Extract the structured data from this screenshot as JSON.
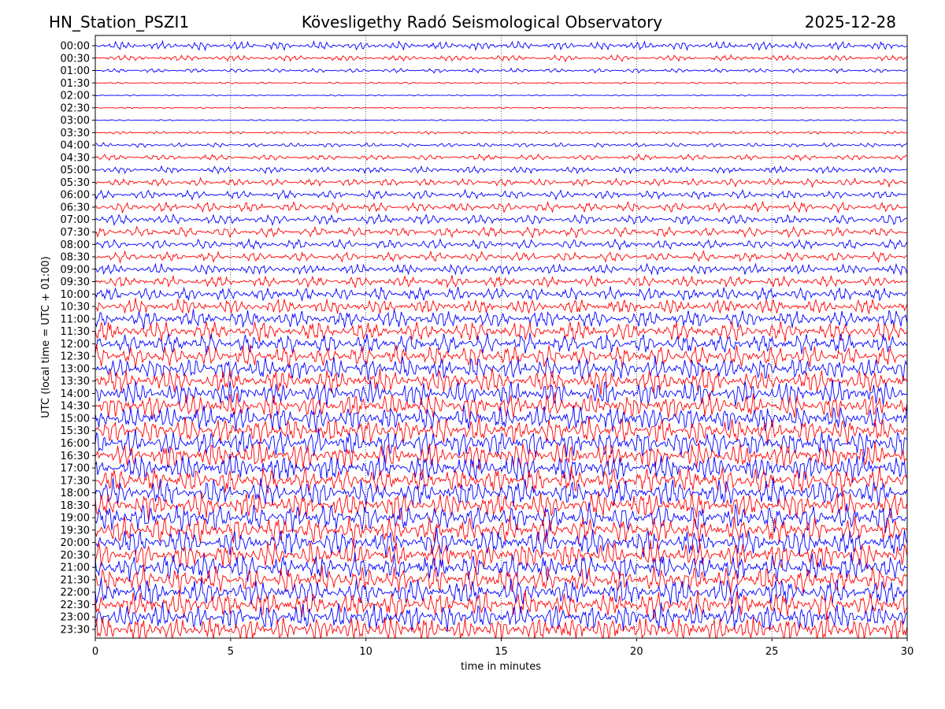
{
  "header": {
    "station": "HN_Station_PSZI1",
    "observatory": "Kövesligethy Radó Seismological Observatory",
    "date": "2025-12-28"
  },
  "chart_data": {
    "type": "line",
    "title": "Kövesligethy Radó Seismological Observatory",
    "xlabel": "time in minutes",
    "ylabel": "UTC (local time = UTC + 01:00)",
    "xlim": [
      0,
      30
    ],
    "x_ticks": [
      "0",
      "5",
      "10",
      "15",
      "20",
      "25",
      "30"
    ],
    "row_labels": [
      "00:00",
      "00:30",
      "01:00",
      "01:30",
      "02:00",
      "02:30",
      "03:00",
      "03:30",
      "04:00",
      "04:30",
      "05:00",
      "05:30",
      "06:00",
      "06:30",
      "07:00",
      "07:30",
      "08:00",
      "08:30",
      "09:00",
      "09:30",
      "10:00",
      "10:30",
      "11:00",
      "11:30",
      "12:00",
      "12:30",
      "13:00",
      "13:30",
      "14:00",
      "14:30",
      "15:00",
      "15:30",
      "16:00",
      "16:30",
      "17:00",
      "17:30",
      "18:00",
      "18:30",
      "19:00",
      "19:30",
      "20:00",
      "20:30",
      "21:00",
      "21:30",
      "22:00",
      "22:30",
      "23:00",
      "23:30"
    ],
    "colors": [
      "#0000ff",
      "#ff0000"
    ],
    "grid": "vertical dotted at 5-minute intervals",
    "relative_amplitude": [
      0.9,
      0.6,
      0.45,
      0.2,
      0.15,
      0.15,
      0.15,
      0.3,
      0.45,
      0.6,
      0.7,
      0.8,
      0.9,
      1.0,
      1.05,
      1.05,
      1.0,
      1.0,
      1.05,
      1.15,
      1.4,
      1.6,
      1.8,
      2.0,
      2.1,
      2.2,
      2.3,
      2.4,
      2.5,
      2.5,
      2.6,
      2.6,
      2.7,
      2.7,
      2.7,
      2.7,
      2.7,
      2.7,
      2.7,
      2.7,
      2.7,
      2.7,
      2.7,
      2.7,
      2.7,
      2.7,
      2.7,
      2.7
    ]
  }
}
